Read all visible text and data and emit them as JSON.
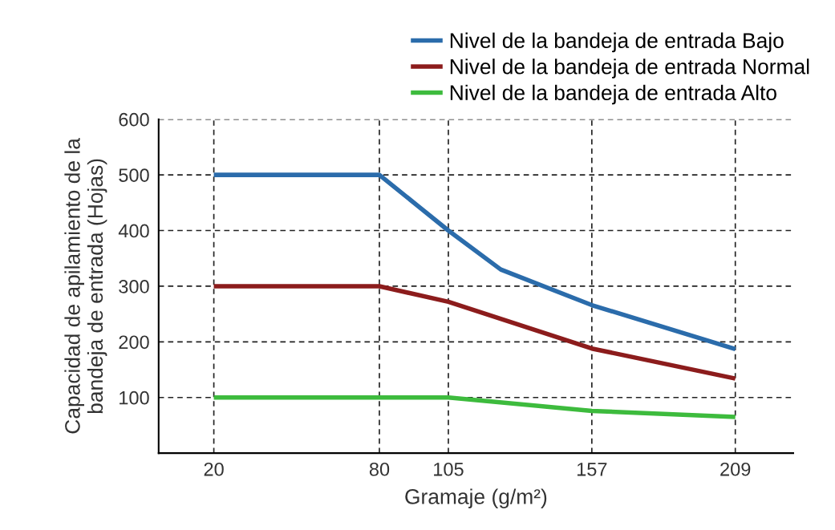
{
  "chart_data": {
    "type": "line",
    "xlabel": "Gramaje (g/m²)",
    "ylabel": "Capacidad de apilamiento de la\nbandeja de entrada (Hojas)",
    "series": [
      {
        "name": "Nivel de la bandeja de entrada Bajo",
        "color": "#2b6cab",
        "x": [
          20,
          80,
          105,
          124,
          157,
          209
        ],
        "values": [
          500,
          500,
          400,
          330,
          266,
          187
        ]
      },
      {
        "name": "Nivel de la bandeja de entrada Normal",
        "color": "#8c1c1c",
        "x": [
          20,
          80,
          105,
          157,
          209
        ],
        "values": [
          300,
          300,
          272,
          188,
          134
        ]
      },
      {
        "name": "Nivel de la bandeja de entrada Alto",
        "color": "#3dbb3d",
        "x": [
          20,
          80,
          105,
          157,
          209
        ],
        "values": [
          100,
          100,
          100,
          76,
          65
        ]
      }
    ],
    "xlim": [
      0,
      230
    ],
    "xticks": [
      20,
      80,
      105,
      157,
      209
    ],
    "ylim": [
      0,
      600
    ],
    "yticks": [
      100,
      200,
      300,
      400,
      500,
      600
    ],
    "grid": true,
    "legend": "top right",
    "marker": "none",
    "line_style": "solid"
  }
}
